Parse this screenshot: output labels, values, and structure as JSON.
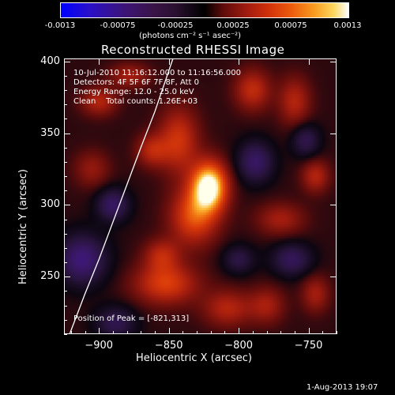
{
  "colorbar": {
    "ticks": [
      "-0.0013",
      "-0.00075",
      "-0.00025",
      "0.00025",
      "0.00075",
      "0.0013"
    ],
    "units": "(photons cm⁻² s⁻¹ asec⁻²)"
  },
  "chart_data": {
    "type": "heatmap",
    "title": "Reconstructed RHESSI Image",
    "xlabel": "Heliocentric X (arcsec)",
    "ylabel": "Heliocentric Y (arcsec)",
    "xlim": [
      -925,
      -730
    ],
    "ylim": [
      210,
      402
    ],
    "x_ticks": [
      -900,
      -850,
      -800,
      -750
    ],
    "x_tick_labels": [
      "−900",
      "−850",
      "−800",
      "−750"
    ],
    "y_ticks": [
      250,
      300,
      350,
      400
    ],
    "y_tick_labels": [
      "250",
      "300",
      "350",
      "400"
    ],
    "value_range": [
      -0.0013,
      0.0013
    ],
    "colormap": "blue-purple-black-red-yellow-white",
    "peak": {
      "x": -821,
      "y": 313
    },
    "sources": [
      {
        "x": -821,
        "y": 313,
        "sx": 9,
        "sy": 12,
        "amp": 1.0
      },
      {
        "x": -832,
        "y": 292,
        "sx": 12,
        "sy": 14,
        "amp": 0.55
      },
      {
        "x": -843,
        "y": 345,
        "sx": 10,
        "sy": 16,
        "amp": 0.45
      },
      {
        "x": -862,
        "y": 338,
        "sx": 8,
        "sy": 8,
        "amp": 0.35
      },
      {
        "x": -900,
        "y": 372,
        "sx": 9,
        "sy": 7,
        "amp": 0.35
      },
      {
        "x": -878,
        "y": 390,
        "sx": 10,
        "sy": 6,
        "amp": 0.3
      },
      {
        "x": -790,
        "y": 380,
        "sx": 9,
        "sy": 10,
        "amp": 0.4
      },
      {
        "x": -760,
        "y": 372,
        "sx": 8,
        "sy": 12,
        "amp": 0.35
      },
      {
        "x": -745,
        "y": 320,
        "sx": 7,
        "sy": 8,
        "amp": 0.35
      },
      {
        "x": -770,
        "y": 290,
        "sx": 12,
        "sy": 8,
        "amp": 0.3
      },
      {
        "x": -852,
        "y": 245,
        "sx": 16,
        "sy": 10,
        "amp": 0.5
      },
      {
        "x": -855,
        "y": 265,
        "sx": 9,
        "sy": 8,
        "amp": 0.35
      },
      {
        "x": -808,
        "y": 228,
        "sx": 12,
        "sy": 9,
        "amp": 0.35
      },
      {
        "x": -780,
        "y": 230,
        "sx": 9,
        "sy": 9,
        "amp": 0.3
      },
      {
        "x": -745,
        "y": 238,
        "sx": 7,
        "sy": 9,
        "amp": 0.3
      },
      {
        "x": -905,
        "y": 325,
        "sx": 9,
        "sy": 9,
        "amp": 0.25
      },
      {
        "x": -890,
        "y": 300,
        "sx": 8,
        "sy": 8,
        "amp": -0.45
      },
      {
        "x": -912,
        "y": 262,
        "sx": 12,
        "sy": 12,
        "amp": -0.55
      },
      {
        "x": -788,
        "y": 330,
        "sx": 9,
        "sy": 10,
        "amp": -0.45
      },
      {
        "x": -752,
        "y": 345,
        "sx": 7,
        "sy": 8,
        "amp": -0.35
      },
      {
        "x": -762,
        "y": 262,
        "sx": 10,
        "sy": 8,
        "amp": -0.4
      },
      {
        "x": -800,
        "y": 262,
        "sx": 8,
        "sy": 7,
        "amp": -0.3
      },
      {
        "x": -888,
        "y": 218,
        "sx": 10,
        "sy": 8,
        "amp": -0.35
      }
    ],
    "limb_curve": [
      {
        "x": -921,
        "y": 210
      },
      {
        "x": -910,
        "y": 238
      },
      {
        "x": -900,
        "y": 262
      },
      {
        "x": -890,
        "y": 288
      },
      {
        "x": -880,
        "y": 314
      },
      {
        "x": -870,
        "y": 340
      },
      {
        "x": -860,
        "y": 365
      },
      {
        "x": -847,
        "y": 402
      }
    ]
  },
  "annotations": {
    "time_range": "10-Jul-2010 11:16:12.000 to 11:16:56.000",
    "detectors": "Detectors: 4F 5F 6F 7F 8F, Att 0",
    "energy": "Energy Range: 12.0 - 25.0 keV",
    "clean": "Clean    Total counts: 1.26E+03",
    "peak_text": "Position of Peak = [-821,313]"
  },
  "datestamp": "1-Aug-2013 19:07"
}
